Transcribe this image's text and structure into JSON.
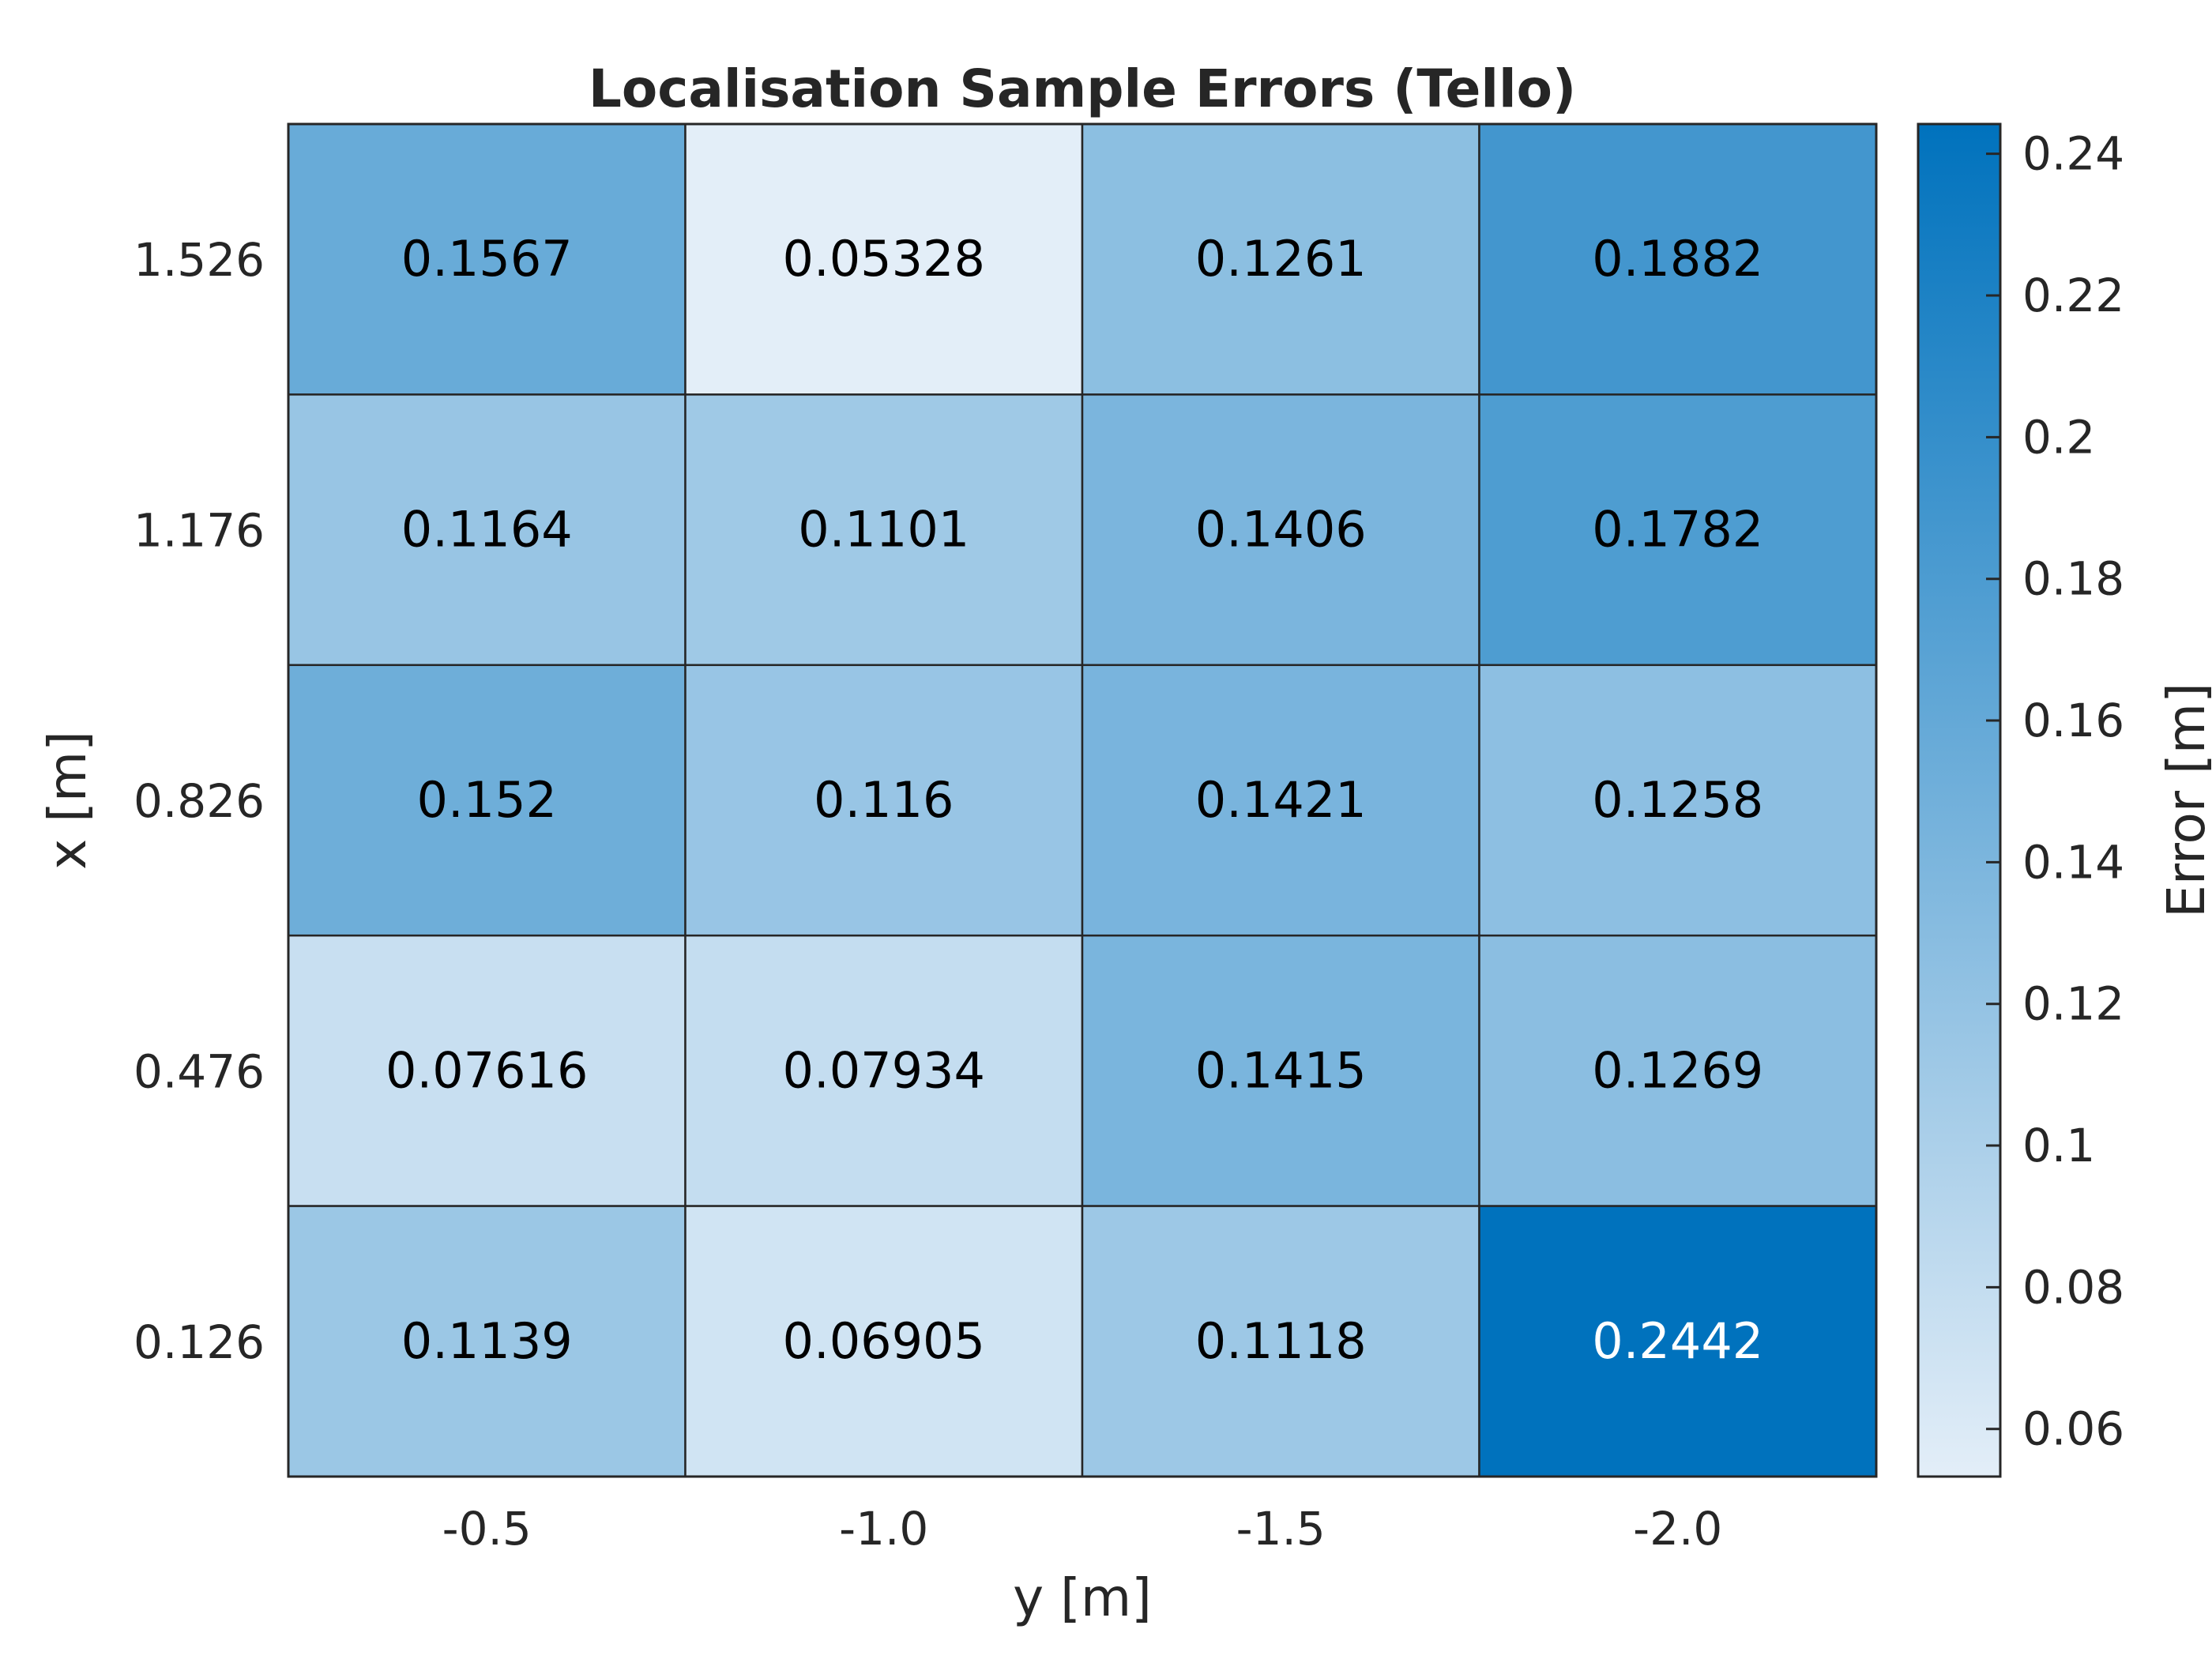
{
  "chart_data": {
    "type": "heatmap",
    "title": "Localisation Sample Errors (Tello)",
    "xlabel": "y [m]",
    "ylabel": "x [m]",
    "x_categories": [
      "-0.5",
      "-1.0",
      "-1.5",
      "-2.0"
    ],
    "y_categories": [
      "1.526",
      "1.176",
      "0.826",
      "0.476",
      "0.126"
    ],
    "values": [
      [
        0.1567,
        0.05328,
        0.1261,
        0.1882
      ],
      [
        0.1164,
        0.1101,
        0.1406,
        0.1782
      ],
      [
        0.152,
        0.116,
        0.1421,
        0.1258
      ],
      [
        0.07616,
        0.07934,
        0.1415,
        0.1269
      ],
      [
        0.1139,
        0.06905,
        0.1118,
        0.2442
      ]
    ],
    "value_labels": [
      [
        "0.1567",
        "0.05328",
        "0.1261",
        "0.1882"
      ],
      [
        "0.1164",
        "0.1101",
        "0.1406",
        "0.1782"
      ],
      [
        "0.152",
        "0.116",
        "0.1421",
        "0.1258"
      ],
      [
        "0.07616",
        "0.07934",
        "0.1415",
        "0.1269"
      ],
      [
        "0.1139",
        "0.06905",
        "0.1118",
        "0.2442"
      ]
    ],
    "colorbar": {
      "label": "Error [m]",
      "range": [
        0.05328,
        0.2442
      ],
      "ticks": [
        0.06,
        0.08,
        0.1,
        0.12,
        0.14,
        0.16,
        0.18,
        0.2,
        0.22,
        0.24
      ],
      "tick_labels": [
        "0.06",
        "0.08",
        "0.1",
        "0.12",
        "0.14",
        "0.16",
        "0.18",
        "0.2",
        "0.22",
        "0.24"
      ],
      "color_low": "#e3eef8",
      "color_high": "#0072bd"
    },
    "grid": false,
    "legend": "none"
  }
}
